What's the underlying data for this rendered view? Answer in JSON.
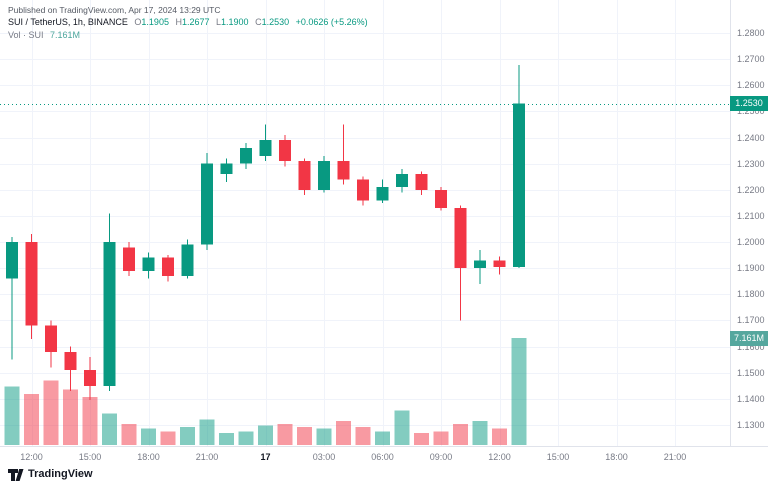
{
  "meta": {
    "published": "Published on TradingView.com, Apr 17, 2024 13:29 UTC"
  },
  "header": {
    "title": "SUI / TetherUS, 1h, BINANCE",
    "ohlc": {
      "o_label": "O",
      "o": "1.1905",
      "h_label": "H",
      "h": "1.2677",
      "l_label": "L",
      "l": "1.1900",
      "c_label": "C",
      "c": "1.2530"
    },
    "change": "+0.0626 (+5.26%)",
    "volume_label": "Vol · SUI",
    "volume_value": "7.161M"
  },
  "badges": {
    "price": "1.2530",
    "volume": "7.161M"
  },
  "footer": {
    "brand": "TradingView"
  },
  "colors": {
    "up": "#089981",
    "down": "#f23645",
    "grid": "#f0f3fa",
    "axis_text": "#787b86",
    "axis_border": "#e0e3eb",
    "price_badge_bg": "#089981",
    "volume_badge_bg": "#55a79e",
    "volume_opacity": 0.5,
    "last_price_line": "#089981"
  },
  "chart_data": {
    "type": "candlestick",
    "title": "SUI / TetherUS, 1h, BINANCE",
    "exchange": "BINANCE",
    "timeframe": "1h",
    "last_price": 1.253,
    "volume_unit": "M",
    "price_axis": {
      "min": 1.13,
      "max": 1.28,
      "tick_step": 0.01,
      "tick_labels": [
        "1.2800",
        "1.2700",
        "1.2600",
        "1.2500",
        "1.2400",
        "1.2300",
        "1.2200",
        "1.2100",
        "1.2000",
        "1.1900",
        "1.1800",
        "1.1700",
        "1.1600",
        "1.1500",
        "1.1400",
        "1.1300"
      ]
    },
    "time_axis": {
      "ticks": [
        {
          "label": "12:00",
          "i": 1
        },
        {
          "label": "15:00",
          "i": 4
        },
        {
          "label": "18:00",
          "i": 7
        },
        {
          "label": "21:00",
          "i": 10
        },
        {
          "label": "17",
          "i": 13,
          "major": true
        },
        {
          "label": "03:00",
          "i": 16
        },
        {
          "label": "06:00",
          "i": 19
        },
        {
          "label": "09:00",
          "i": 22
        },
        {
          "label": "12:00",
          "i": 25
        },
        {
          "label": "15:00",
          "i": 28
        },
        {
          "label": "18:00",
          "i": 31
        },
        {
          "label": "21:00",
          "i": 34
        }
      ]
    },
    "candles": [
      {
        "t": "Apr 16 11:00",
        "o": 1.186,
        "h": 1.202,
        "l": 1.155,
        "c": 1.2,
        "v": 3.9
      },
      {
        "t": "Apr 16 12:00",
        "o": 1.2,
        "h": 1.203,
        "l": 1.163,
        "c": 1.168,
        "v": 3.4
      },
      {
        "t": "Apr 16 13:00",
        "o": 1.168,
        "h": 1.17,
        "l": 1.152,
        "c": 1.158,
        "v": 4.3
      },
      {
        "t": "Apr 16 14:00",
        "o": 1.158,
        "h": 1.16,
        "l": 1.143,
        "c": 1.151,
        "v": 3.7
      },
      {
        "t": "Apr 16 15:00",
        "o": 1.151,
        "h": 1.156,
        "l": 1.1395,
        "c": 1.145,
        "v": 3.2
      },
      {
        "t": "Apr 16 16:00",
        "o": 1.145,
        "h": 1.211,
        "l": 1.143,
        "c": 1.2,
        "v": 2.1
      },
      {
        "t": "Apr 16 17:00",
        "o": 1.198,
        "h": 1.2,
        "l": 1.187,
        "c": 1.189,
        "v": 1.4
      },
      {
        "t": "Apr 16 18:00",
        "o": 1.189,
        "h": 1.196,
        "l": 1.186,
        "c": 1.194,
        "v": 1.1
      },
      {
        "t": "Apr 16 19:00",
        "o": 1.194,
        "h": 1.195,
        "l": 1.185,
        "c": 1.187,
        "v": 0.9
      },
      {
        "t": "Apr 16 20:00",
        "o": 1.187,
        "h": 1.201,
        "l": 1.186,
        "c": 1.199,
        "v": 1.2
      },
      {
        "t": "Apr 16 21:00",
        "o": 1.199,
        "h": 1.234,
        "l": 1.197,
        "c": 1.23,
        "v": 1.7
      },
      {
        "t": "Apr 16 22:00",
        "o": 1.226,
        "h": 1.232,
        "l": 1.223,
        "c": 1.23,
        "v": 0.8
      },
      {
        "t": "Apr 16 23:00",
        "o": 1.23,
        "h": 1.238,
        "l": 1.228,
        "c": 1.236,
        "v": 0.9
      },
      {
        "t": "Apr 17 00:00",
        "o": 1.233,
        "h": 1.245,
        "l": 1.231,
        "c": 1.239,
        "v": 1.3
      },
      {
        "t": "Apr 17 01:00",
        "o": 1.239,
        "h": 1.241,
        "l": 1.229,
        "c": 1.231,
        "v": 1.4
      },
      {
        "t": "Apr 17 02:00",
        "o": 1.231,
        "h": 1.232,
        "l": 1.218,
        "c": 1.22,
        "v": 1.2
      },
      {
        "t": "Apr 17 03:00",
        "o": 1.22,
        "h": 1.233,
        "l": 1.219,
        "c": 1.231,
        "v": 1.1
      },
      {
        "t": "Apr 17 04:00",
        "o": 1.231,
        "h": 1.245,
        "l": 1.222,
        "c": 1.224,
        "v": 1.6
      },
      {
        "t": "Apr 17 05:00",
        "o": 1.224,
        "h": 1.225,
        "l": 1.214,
        "c": 1.216,
        "v": 1.2
      },
      {
        "t": "Apr 17 06:00",
        "o": 1.216,
        "h": 1.224,
        "l": 1.215,
        "c": 1.221,
        "v": 0.9
      },
      {
        "t": "Apr 17 07:00",
        "o": 1.221,
        "h": 1.228,
        "l": 1.219,
        "c": 1.226,
        "v": 2.3
      },
      {
        "t": "Apr 17 08:00",
        "o": 1.226,
        "h": 1.227,
        "l": 1.218,
        "c": 1.22,
        "v": 0.8
      },
      {
        "t": "Apr 17 09:00",
        "o": 1.22,
        "h": 1.221,
        "l": 1.212,
        "c": 1.213,
        "v": 0.9
      },
      {
        "t": "Apr 17 10:00",
        "o": 1.213,
        "h": 1.214,
        "l": 1.17,
        "c": 1.19,
        "v": 1.4
      },
      {
        "t": "Apr 17 11:00",
        "o": 1.19,
        "h": 1.197,
        "l": 1.184,
        "c": 1.193,
        "v": 1.6
      },
      {
        "t": "Apr 17 12:00",
        "o": 1.193,
        "h": 1.1945,
        "l": 1.1875,
        "c": 1.1905,
        "v": 1.1
      },
      {
        "t": "Apr 17 13:00",
        "o": 1.1905,
        "h": 1.2677,
        "l": 1.19,
        "c": 1.253,
        "v": 7.161
      }
    ]
  }
}
